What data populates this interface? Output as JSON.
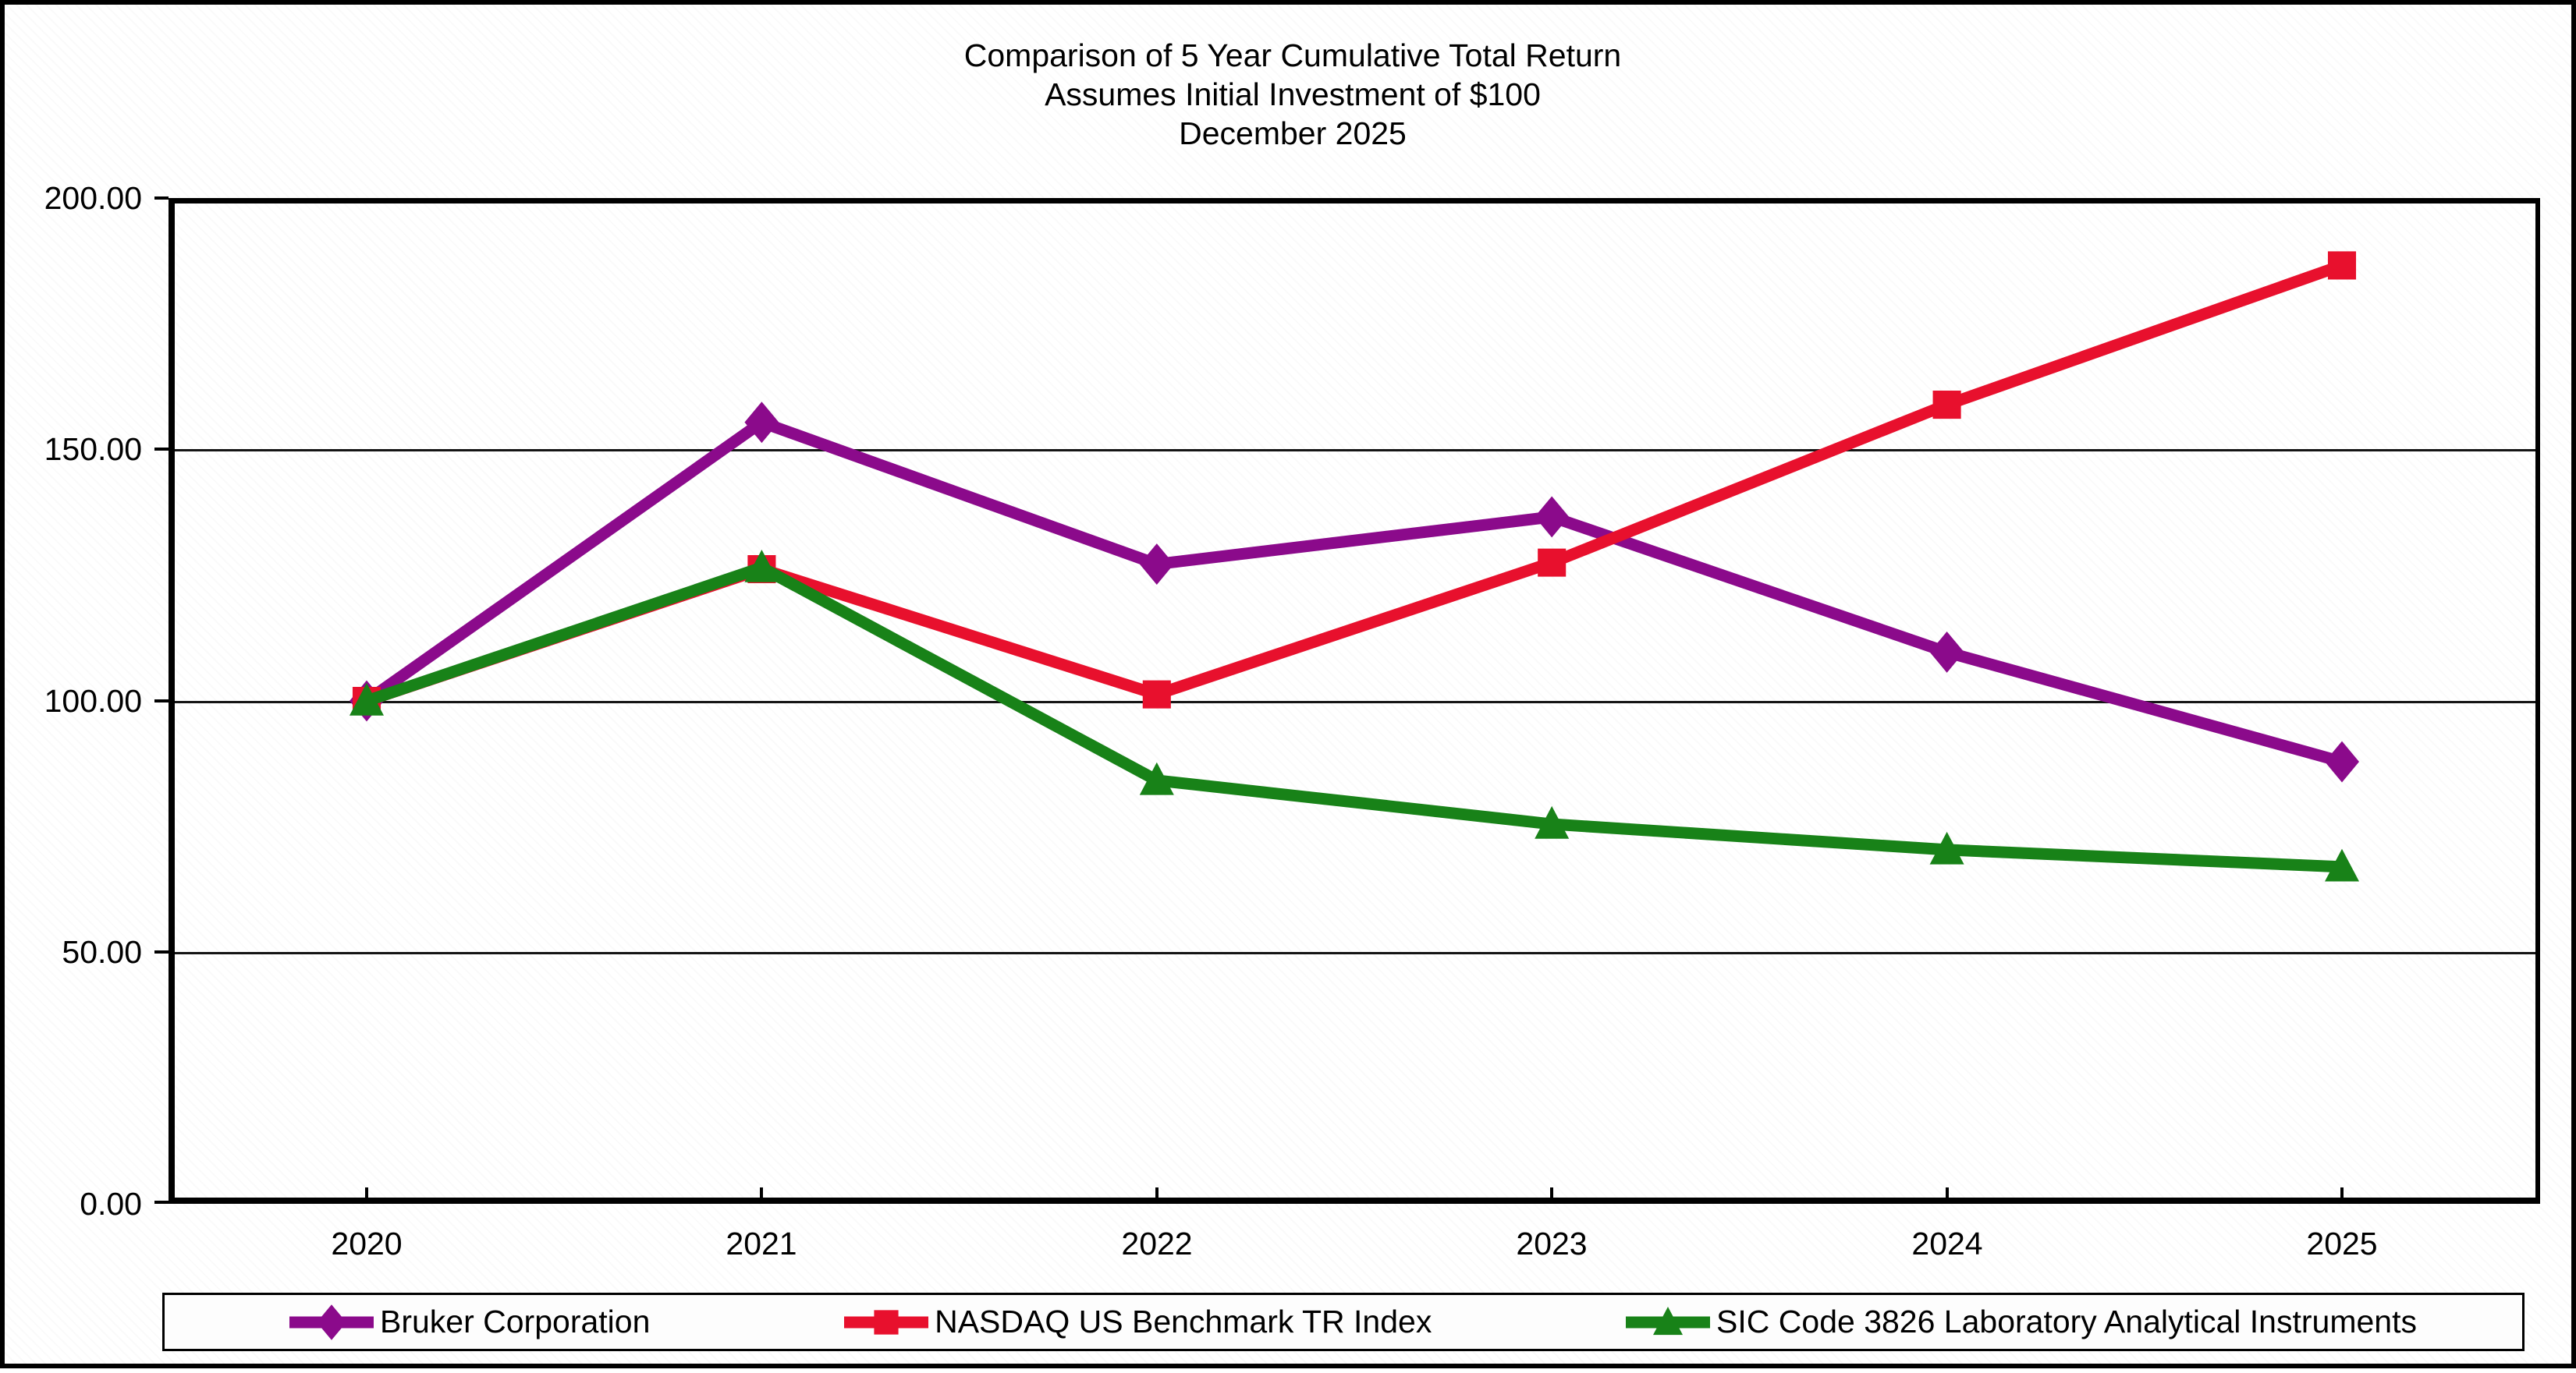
{
  "title": {
    "line1": "Comparison of 5 Year Cumulative Total Return",
    "line2": "Assumes Initial Investment of $100",
    "line3": "December 2025"
  },
  "chart_data": {
    "type": "line",
    "x": [
      2020,
      2021,
      2022,
      2023,
      2024,
      2025
    ],
    "x_tick_labels": [
      "2020",
      "2021",
      "2022",
      "2023",
      "2024",
      "2025"
    ],
    "y_tick_labels": [
      "200.00",
      "150.00",
      "100.00",
      "50.00",
      "0.00"
    ],
    "ylim": [
      0,
      200
    ],
    "grid": true,
    "legend_position": "bottom",
    "series": [
      {
        "name": "Bruker Corporation",
        "marker": "diamond",
        "color": "#8B0A8B",
        "values": [
          100.0,
          155.4,
          127.2,
          136.6,
          109.7,
          87.9
        ]
      },
      {
        "name": "NASDAQ US Benchmark TR Index",
        "marker": "square",
        "color": "#E8102D",
        "values": [
          100.0,
          126.2,
          101.3,
          127.5,
          158.9,
          186.6
        ]
      },
      {
        "name": "SIC Code 3826 Laboratory Analytical Instruments",
        "marker": "triangle",
        "color": "#188218",
        "values": [
          100.0,
          126.5,
          84.2,
          75.5,
          70.4,
          67.0
        ]
      }
    ]
  }
}
